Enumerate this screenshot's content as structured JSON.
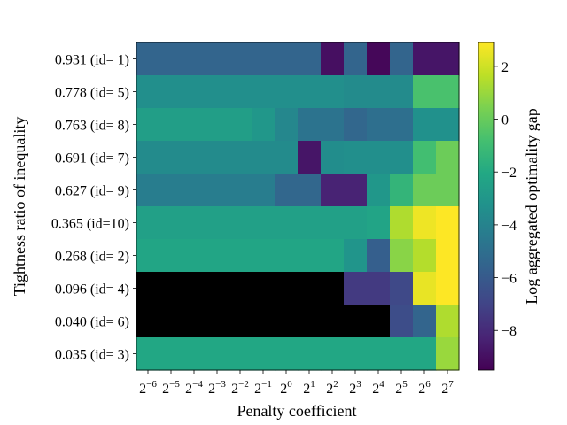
{
  "chart_data": {
    "type": "heatmap",
    "title": "",
    "xlabel": "Penalty coefficient",
    "ylabel": "Tightness ratio of inequality",
    "x_categories": [
      {
        "base": "2",
        "exp": "−6"
      },
      {
        "base": "2",
        "exp": "−5"
      },
      {
        "base": "2",
        "exp": "−4"
      },
      {
        "base": "2",
        "exp": "−3"
      },
      {
        "base": "2",
        "exp": "−2"
      },
      {
        "base": "2",
        "exp": "−1"
      },
      {
        "base": "2",
        "exp": "0"
      },
      {
        "base": "2",
        "exp": "1"
      },
      {
        "base": "2",
        "exp": "2"
      },
      {
        "base": "2",
        "exp": "3"
      },
      {
        "base": "2",
        "exp": "4"
      },
      {
        "base": "2",
        "exp": "5"
      },
      {
        "base": "2",
        "exp": "6"
      },
      {
        "base": "2",
        "exp": "7"
      }
    ],
    "y_categories": [
      "0.931 (id= 1)",
      "0.778 (id= 5)",
      "0.763 (id= 8)",
      "0.691 (id= 7)",
      "0.627 (id= 9)",
      "0.365 (id=10)",
      "0.268 (id= 2)",
      "0.096 (id= 4)",
      "0.040 (id= 6)",
      "0.035 (id= 3)"
    ],
    "values": [
      [
        -5.5,
        -5.5,
        -5.5,
        -5.5,
        -5.5,
        -5.5,
        -5.5,
        -5.5,
        -9.0,
        -5.5,
        -9.3,
        -5.5,
        -8.8,
        -8.8
      ],
      [
        -3.4,
        -3.4,
        -3.4,
        -3.4,
        -3.4,
        -3.4,
        -3.4,
        -3.4,
        -3.4,
        -3.6,
        -3.6,
        -3.6,
        -0.7,
        -0.7
      ],
      [
        -2.6,
        -2.6,
        -2.6,
        -2.6,
        -2.6,
        -3.0,
        -3.8,
        -4.8,
        -4.8,
        -5.4,
        -5.0,
        -5.0,
        -3.3,
        -3.3
      ],
      [
        -3.6,
        -3.6,
        -3.6,
        -3.6,
        -3.6,
        -3.6,
        -3.6,
        -8.8,
        -3.5,
        -3.4,
        -3.4,
        -3.4,
        -0.9,
        0.1
      ],
      [
        -4.3,
        -4.3,
        -4.3,
        -4.3,
        -4.3,
        -4.3,
        -5.4,
        -5.4,
        -8.3,
        -8.3,
        -3.0,
        -1.4,
        0.1,
        0.1
      ],
      [
        -2.5,
        -2.5,
        -2.5,
        -2.5,
        -2.5,
        -2.5,
        -2.5,
        -2.5,
        -2.5,
        -2.5,
        -2.3,
        1.4,
        2.6,
        2.9
      ],
      [
        -2.2,
        -2.2,
        -2.2,
        -2.2,
        -2.2,
        -2.2,
        -2.2,
        -2.2,
        -2.2,
        -3.1,
        -5.8,
        0.7,
        1.5,
        2.9
      ],
      [
        null,
        null,
        null,
        null,
        null,
        null,
        null,
        null,
        null,
        -7.4,
        -7.4,
        -6.8,
        2.5,
        2.9
      ],
      [
        null,
        null,
        null,
        null,
        null,
        null,
        null,
        null,
        null,
        null,
        null,
        -6.6,
        -5.5,
        1.4
      ],
      [
        -2.1,
        -2.1,
        -2.1,
        -2.1,
        -2.1,
        -2.1,
        -2.1,
        -2.1,
        -2.1,
        -2.1,
        -2.1,
        -2.1,
        -2.1,
        1.0
      ]
    ],
    "missing_color": "#000000",
    "colorbar": {
      "label": "Log aggregated optimality gap",
      "min": -9.5,
      "max": 2.9,
      "ticks": [
        "2",
        "0",
        "−2",
        "−4",
        "−6",
        "−8"
      ],
      "tick_values": [
        2,
        0,
        -2,
        -4,
        -6,
        -8
      ],
      "colormap": "viridis"
    }
  }
}
